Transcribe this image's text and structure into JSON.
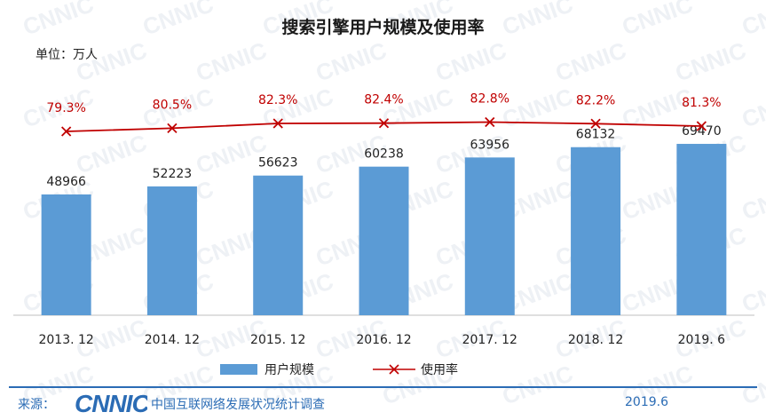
{
  "title": "搜索引擎用户规模及使用率",
  "unit_label": "单位：万人",
  "colors": {
    "bar": "#5b9bd5",
    "line": "#c00000",
    "label_red": "#c00000",
    "footer": "#2b6cb5"
  },
  "watermark_text": "CNNIC",
  "chart_data": {
    "type": "bar",
    "title": "搜索引擎用户规模及使用率",
    "categories": [
      "2013.12",
      "2014.12",
      "2015.12",
      "2016.12",
      "2017.12",
      "2018.12",
      "2019.6"
    ],
    "category_labels": [
      "2013. 12",
      "2014. 12",
      "2015. 12",
      "2016. 12",
      "2017. 12",
      "2018. 12",
      "2019. 6"
    ],
    "series": [
      {
        "name": "用户规模",
        "type": "bar",
        "values": [
          48966,
          52223,
          56623,
          60238,
          63956,
          68132,
          69470
        ]
      },
      {
        "name": "使用率",
        "type": "line",
        "marker": "x",
        "values": [
          79.3,
          80.5,
          82.3,
          82.4,
          82.8,
          82.2,
          81.3
        ],
        "value_labels": [
          "79.3%",
          "80.5%",
          "82.3%",
          "82.4%",
          "82.8%",
          "82.2%",
          "81.3%"
        ]
      }
    ],
    "ylabel": "单位：万人",
    "legend": "bottom",
    "grid": false
  },
  "footer": {
    "source_label": "来源：",
    "logo_text": "CNNIC",
    "org": "中国互联网络发展状况统计调查",
    "date": "2019.6"
  }
}
